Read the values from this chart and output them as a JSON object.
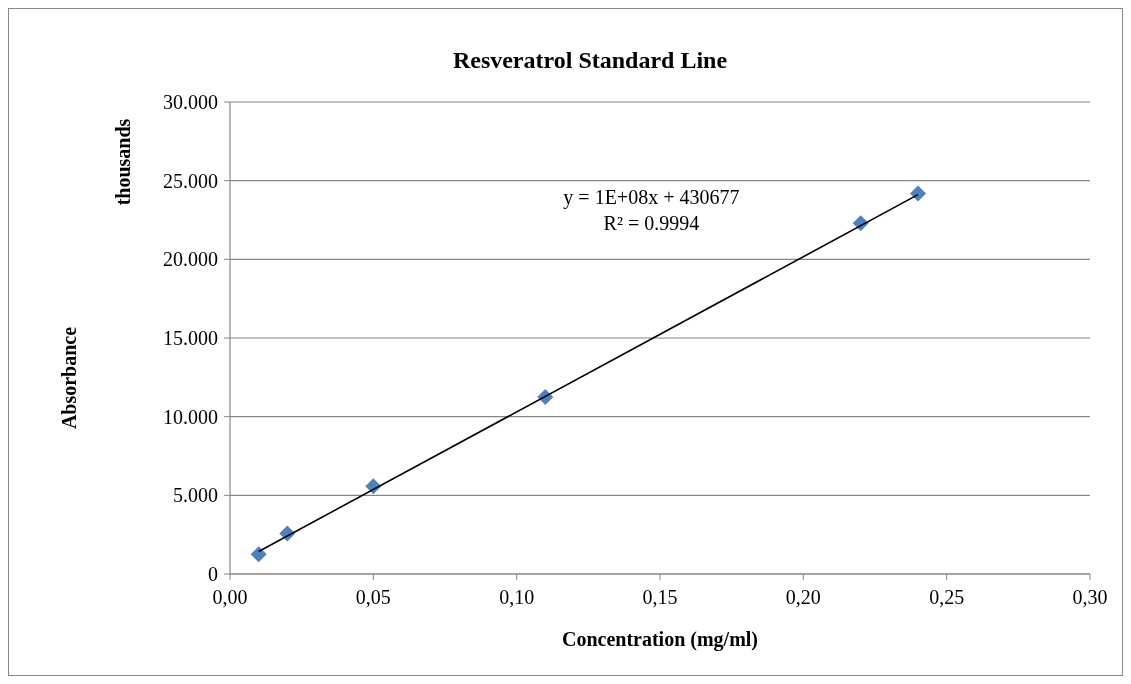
{
  "chart_data": {
    "type": "scatter",
    "title": "Resveratrol Standard Line",
    "xlabel": "Concentration (mg/ml)",
    "ylabel": "Absorbance",
    "y2label": "thousands",
    "x": [
      0.01,
      0.02,
      0.05,
      0.11,
      0.22,
      0.24
    ],
    "series": [
      {
        "color": "#4f81bd",
        "marker": "diamond",
        "values": [
          1250,
          2570,
          5570,
          11250,
          22290,
          24180
        ]
      },
      {
        "type": "line",
        "color": "#000000",
        "x": [
          0.01,
          0.24
        ],
        "values": [
          1430,
          24110
        ]
      }
    ],
    "xlim": [
      0,
      0.3
    ],
    "xticks": [
      {
        "value": 0,
        "label": "0,00"
      },
      {
        "value": 0.05,
        "label": "0,05"
      },
      {
        "value": 0.1,
        "label": "0,10"
      },
      {
        "value": 0.15,
        "label": "0,15"
      },
      {
        "value": 0.2,
        "label": "0,20"
      },
      {
        "value": 0.25,
        "label": "0,25"
      },
      {
        "value": 0.3,
        "label": "0,30"
      }
    ],
    "ylim": [
      0,
      30000
    ],
    "yticks": [
      0,
      {
        "value": 5000,
        "label": "5.000"
      },
      {
        "value": 10000,
        "label": "10.000"
      },
      {
        "value": 15000,
        "label": "15.000"
      },
      {
        "value": 20000,
        "label": "20.000"
      },
      {
        "value": 25000,
        "label": "25.000"
      },
      {
        "value": 30000,
        "label": "30.000"
      }
    ],
    "grid": "y",
    "annotations": [
      "y = 1E+08x + 430677\nR² = 0.9994"
    ]
  }
}
